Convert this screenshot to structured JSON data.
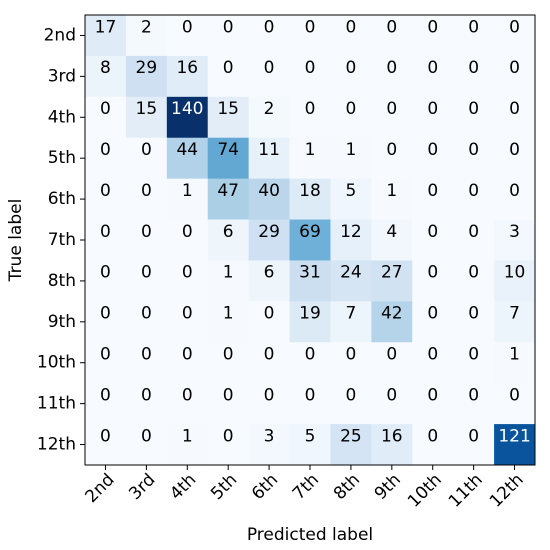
{
  "chart_data": {
    "type": "heatmap",
    "x_label": "Predicted label",
    "y_label": "True label",
    "x_categories": [
      "2nd",
      "3rd",
      "4th",
      "5th",
      "6th",
      "7th",
      "8th",
      "9th",
      "10th",
      "11th",
      "12th"
    ],
    "y_categories": [
      "2nd",
      "3rd",
      "4th",
      "5th",
      "6th",
      "7th",
      "8th",
      "9th",
      "10th",
      "11th",
      "12th"
    ],
    "values": [
      [
        17,
        2,
        0,
        0,
        0,
        0,
        0,
        0,
        0,
        0,
        0
      ],
      [
        8,
        29,
        16,
        0,
        0,
        0,
        0,
        0,
        0,
        0,
        0
      ],
      [
        0,
        15,
        140,
        15,
        2,
        0,
        0,
        0,
        0,
        0,
        0
      ],
      [
        0,
        0,
        44,
        74,
        11,
        1,
        1,
        0,
        0,
        0,
        0
      ],
      [
        0,
        0,
        1,
        47,
        40,
        18,
        5,
        1,
        0,
        0,
        0
      ],
      [
        0,
        0,
        0,
        6,
        29,
        69,
        12,
        4,
        0,
        0,
        3
      ],
      [
        0,
        0,
        0,
        1,
        6,
        31,
        24,
        27,
        0,
        0,
        10
      ],
      [
        0,
        0,
        0,
        1,
        0,
        19,
        7,
        42,
        0,
        0,
        7
      ],
      [
        0,
        0,
        0,
        0,
        0,
        0,
        0,
        0,
        0,
        0,
        1
      ],
      [
        0,
        0,
        0,
        0,
        0,
        0,
        0,
        0,
        0,
        0,
        0
      ],
      [
        0,
        0,
        1,
        0,
        3,
        5,
        25,
        16,
        0,
        0,
        121
      ]
    ],
    "colormap": "Blues"
  }
}
